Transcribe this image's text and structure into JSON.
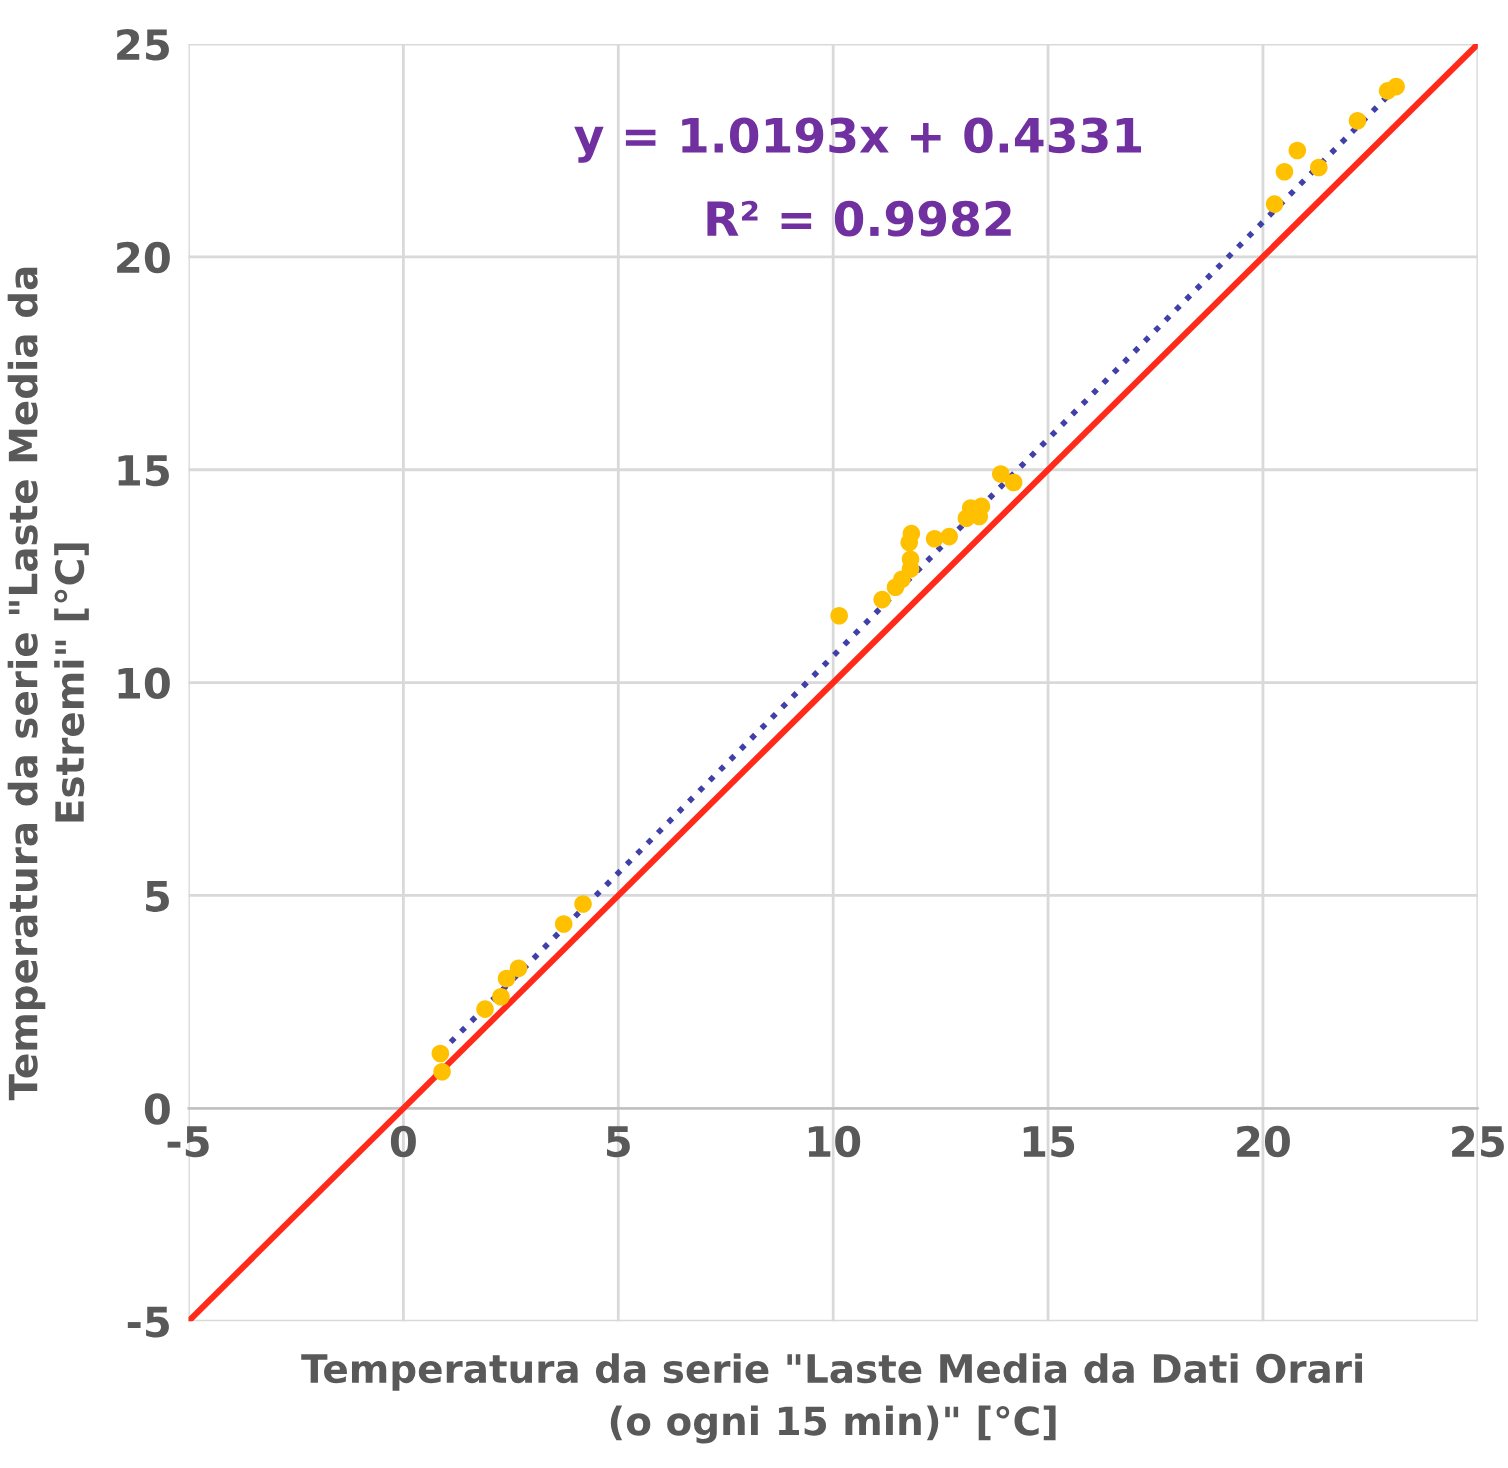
{
  "chart_data": {
    "type": "scatter",
    "xlabel": "Temperatura da serie \"Laste Media da Dati Orari\n(o ogni 15 min)\" [°C]",
    "ylabel": "Temperatura da serie \"Laste Media da\nEstremi\" [°C]",
    "annotations": [
      "y = 1.0193x + 0.4331",
      "R² = 0.9982"
    ],
    "xlim": [
      -5,
      25
    ],
    "ylim": [
      -5,
      25
    ],
    "xticks": [
      -5,
      0,
      5,
      10,
      15,
      20,
      25
    ],
    "yticks": [
      -5,
      0,
      5,
      10,
      15,
      20,
      25
    ],
    "grid": true,
    "legend": false,
    "series": [
      {
        "color": "#ffc000",
        "marker": "circle",
        "x": [
          0.86,
          0.9,
          1.9,
          2.27,
          2.4,
          2.68,
          3.73,
          4.18,
          10.14,
          11.14,
          11.45,
          11.6,
          11.8,
          11.8,
          11.77,
          11.82,
          12.36,
          12.7,
          13.1,
          13.2,
          13.4,
          13.45,
          13.9,
          14.2,
          20.27,
          20.5,
          20.8,
          21.3,
          22.2,
          22.9,
          23.1
        ],
        "values": [
          1.29,
          0.86,
          2.33,
          2.62,
          3.05,
          3.29,
          4.33,
          4.8,
          11.57,
          11.95,
          12.24,
          12.43,
          12.67,
          12.9,
          13.29,
          13.5,
          13.38,
          13.43,
          13.86,
          14.1,
          13.9,
          14.14,
          14.9,
          14.7,
          21.24,
          22.0,
          22.5,
          22.1,
          23.2,
          23.9,
          24.0
        ]
      },
      {
        "type": "line",
        "color": "#4040a8",
        "line_style": "dotted",
        "x": [
          0.86,
          23.1
        ],
        "values": [
          1.31,
          23.98
        ]
      },
      {
        "type": "line",
        "color": "#ff2a1a",
        "line_style": "solid",
        "x": [
          -5,
          25
        ],
        "values": [
          -5,
          25
        ]
      }
    ]
  }
}
